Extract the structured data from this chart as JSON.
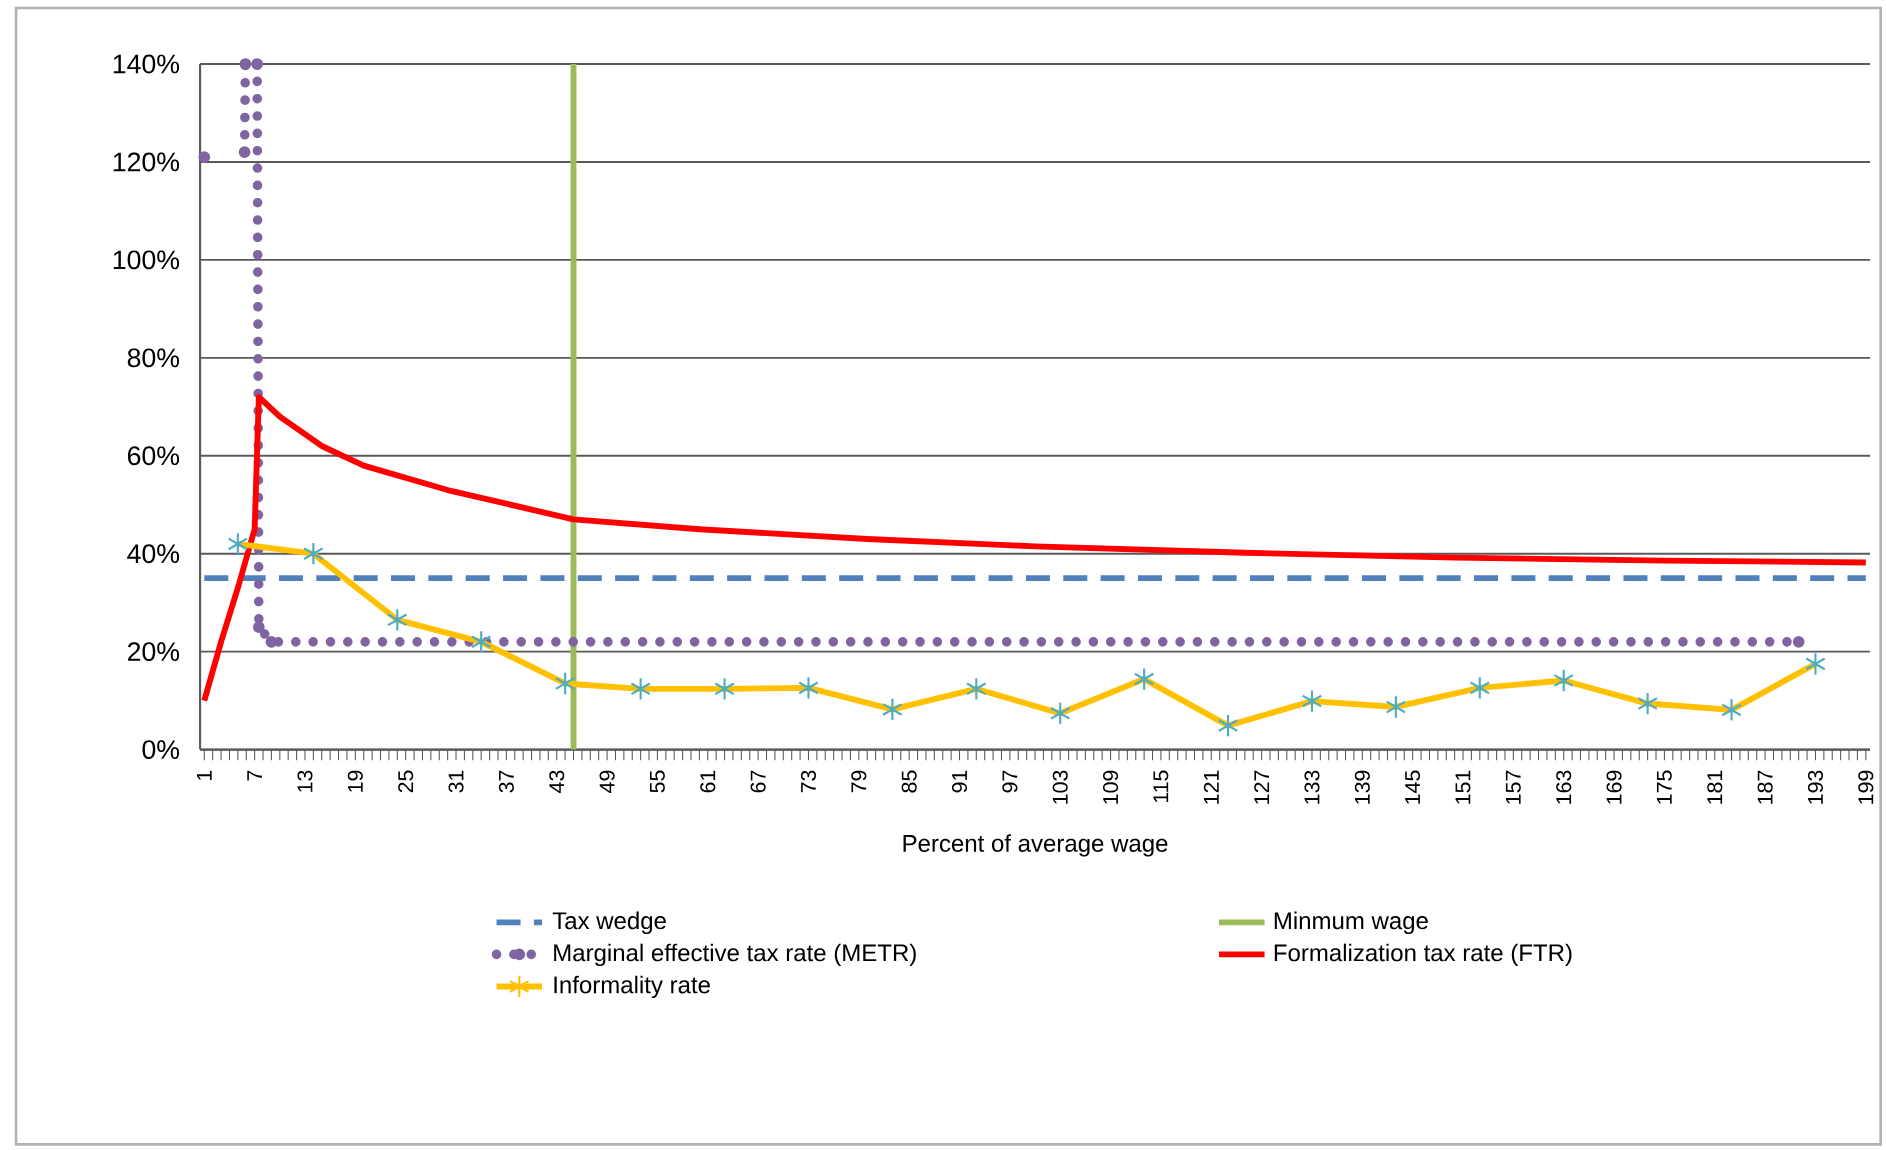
{
  "chart_data": {
    "type": "line",
    "xlabel": "Percent of average wage",
    "xlim": [
      0.5,
      199.5
    ],
    "xticks": [
      1,
      7,
      13,
      19,
      25,
      31,
      37,
      43,
      49,
      55,
      61,
      67,
      73,
      79,
      85,
      91,
      97,
      103,
      109,
      115,
      121,
      127,
      133,
      139,
      145,
      151,
      157,
      163,
      169,
      175,
      181,
      187,
      193,
      199
    ],
    "ylim": [
      0,
      140
    ],
    "yticks": [
      {
        "value": 0,
        "label": "0%"
      },
      {
        "value": 20,
        "label": "20%"
      },
      {
        "value": 40,
        "label": "40%"
      },
      {
        "value": 60,
        "label": "60%"
      },
      {
        "value": 80,
        "label": "80%"
      },
      {
        "value": 100,
        "label": "100%"
      },
      {
        "value": 120,
        "label": "120%"
      },
      {
        "value": 140,
        "label": "140%"
      }
    ],
    "grid": "y",
    "legend": "bottom",
    "series": [
      {
        "name": "Tax wedge",
        "color": "#4f81bd",
        "line_style": "dashed",
        "marker": "none",
        "x": [
          1,
          199
        ],
        "values": [
          35,
          35
        ]
      },
      {
        "name": "Minmum wage",
        "color": "#9bbb59",
        "line_style": "solid",
        "marker": "none",
        "x": [
          45,
          45
        ],
        "values": [
          0,
          140
        ]
      },
      {
        "name": "Marginal effective tax rate (METR)",
        "color": "#8064a2",
        "line_style": "dotted",
        "marker": "circle",
        "x": [
          1,
          1.5,
          5.8,
          5.9,
          6,
          7.3,
          7.5,
          9,
          191
        ],
        "values": [
          121,
          null,
          122,
          140,
          null,
          140,
          25,
          22,
          22
        ]
      },
      {
        "name": "Formalization tax rate (FTR)",
        "color": "#ff0000",
        "line_style": "solid",
        "marker": "none",
        "x": [
          1,
          3,
          5,
          7,
          7.5,
          10,
          15,
          20,
          30,
          45,
          60,
          80,
          100,
          125,
          150,
          175,
          199
        ],
        "values": [
          10,
          22,
          33,
          45,
          72,
          68,
          62,
          58,
          53,
          47,
          45,
          43,
          41.5,
          40.2,
          39.2,
          38.6,
          38.2
        ]
      },
      {
        "name": "Informality rate",
        "color": "#ffc000",
        "line_style": "solid",
        "marker": "cross",
        "colors": [
          "#4bacc6",
          "#4bacc6",
          "#4bacc6",
          "#4bacc6",
          "#4bacc6",
          "#4bacc6",
          "#4bacc6",
          "#4bacc6",
          "#4bacc6",
          "#4bacc6",
          "#4bacc6",
          "#4bacc6",
          "#4bacc6",
          "#4bacc6",
          "#4bacc6",
          "#4bacc6",
          "#4bacc6",
          "#4bacc6",
          "#4bacc6",
          "#4bacc6"
        ],
        "x": [
          5,
          14,
          24,
          34,
          44,
          53,
          63,
          73,
          83,
          93,
          103,
          113,
          123,
          133,
          143,
          153,
          163,
          173,
          183,
          193
        ],
        "values": [
          42,
          40,
          26.5,
          22,
          13.5,
          12.4,
          12.4,
          12.6,
          8.2,
          12.4,
          7.4,
          14.4,
          4.9,
          9.9,
          8.7,
          12.6,
          14.1,
          9.4,
          8.1,
          17.5
        ]
      }
    ]
  }
}
